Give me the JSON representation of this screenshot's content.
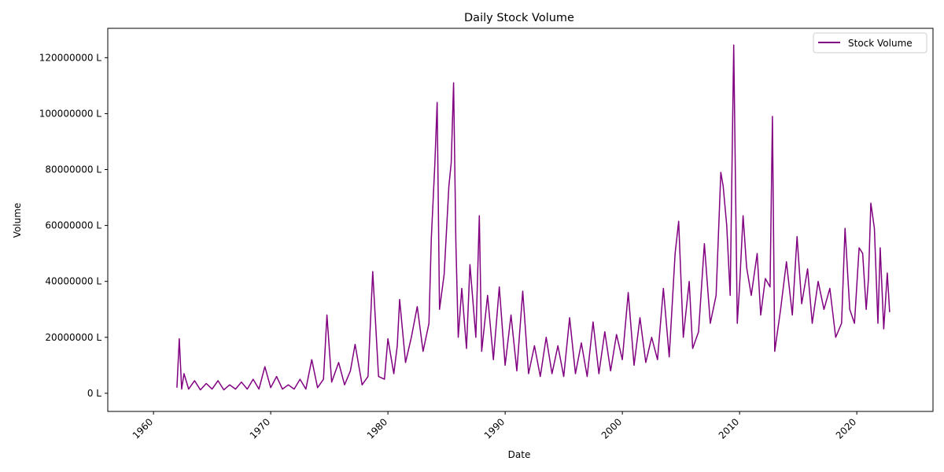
{
  "chart_data": {
    "type": "line",
    "title": "Daily Stock Volume",
    "xlabel": "Date",
    "ylabel": "Volume",
    "xlim": [
      1956.1,
      2026.5
    ],
    "ylim": [
      -6500000,
      130500000
    ],
    "x_ticks": [
      1960,
      1970,
      1980,
      1990,
      2000,
      2010,
      2020
    ],
    "x_tick_labels": [
      "1960",
      "1970",
      "1980",
      "1990",
      "2000",
      "2010",
      "2020"
    ],
    "y_ticks": [
      0,
      20000000,
      40000000,
      60000000,
      80000000,
      100000000,
      120000000
    ],
    "y_tick_labels": [
      "0 L",
      "20000000 L",
      "40000000 L",
      "60000000 L",
      "80000000 L",
      "100000000 L",
      "120000000 L"
    ],
    "grid": false,
    "legend_position": "top-right",
    "series": [
      {
        "name": "Stock Volume",
        "color": "#800080",
        "x": [
          1962.0,
          1962.2,
          1962.4,
          1962.6,
          1963.0,
          1963.5,
          1964.0,
          1964.5,
          1965.0,
          1965.5,
          1966.0,
          1966.5,
          1967.0,
          1967.5,
          1968.0,
          1968.5,
          1969.0,
          1969.5,
          1970.0,
          1970.5,
          1971.0,
          1971.5,
          1972.0,
          1972.5,
          1973.0,
          1973.5,
          1974.0,
          1974.5,
          1974.8,
          1975.2,
          1975.8,
          1976.3,
          1976.8,
          1977.2,
          1977.8,
          1978.3,
          1978.7,
          1979.2,
          1979.7,
          1980.0,
          1980.5,
          1980.8,
          1981.0,
          1981.5,
          1982.0,
          1982.5,
          1983.0,
          1983.5,
          1983.7,
          1984.0,
          1984.2,
          1984.4,
          1984.8,
          1985.2,
          1985.4,
          1985.6,
          1985.8,
          1986.0,
          1986.3,
          1986.7,
          1987.0,
          1987.5,
          1987.8,
          1988.0,
          1988.5,
          1989.0,
          1989.5,
          1990.0,
          1990.5,
          1991.0,
          1991.5,
          1992.0,
          1992.5,
          1993.0,
          1993.5,
          1994.0,
          1994.5,
          1995.0,
          1995.5,
          1996.0,
          1996.5,
          1997.0,
          1997.5,
          1998.0,
          1998.5,
          1999.0,
          1999.5,
          2000.0,
          2000.5,
          2001.0,
          2001.5,
          2002.0,
          2002.5,
          2003.0,
          2003.5,
          2004.0,
          2004.5,
          2004.8,
          2005.2,
          2005.7,
          2006.0,
          2006.5,
          2007.0,
          2007.5,
          2008.0,
          2008.4,
          2008.6,
          2008.9,
          2009.2,
          2009.5,
          2009.8,
          2010.0,
          2010.3,
          2010.6,
          2011.0,
          2011.5,
          2011.8,
          2012.2,
          2012.6,
          2012.8,
          2013.0,
          2013.5,
          2014.0,
          2014.5,
          2014.9,
          2015.3,
          2015.8,
          2016.2,
          2016.7,
          2017.2,
          2017.7,
          2018.2,
          2018.7,
          2019.0,
          2019.4,
          2019.8,
          2020.2,
          2020.5,
          2020.8,
          2021.0,
          2021.2,
          2021.5,
          2021.8,
          2022.0,
          2022.3,
          2022.6,
          2022.8
        ],
        "values": [
          2000000,
          19500000,
          1500000,
          7000000,
          1500000,
          4500000,
          1200000,
          3500000,
          1500000,
          4500000,
          1200000,
          3000000,
          1500000,
          4000000,
          1500000,
          5000000,
          1500000,
          9500000,
          2000000,
          6000000,
          1500000,
          3000000,
          1500000,
          5000000,
          1500000,
          12000000,
          2000000,
          5000000,
          28000000,
          4000000,
          11000000,
          3000000,
          8000000,
          17500000,
          3000000,
          6000000,
          43500000,
          6000000,
          5000000,
          19500000,
          7000000,
          17000000,
          33500000,
          11000000,
          20000000,
          31000000,
          15000000,
          25000000,
          55500000,
          81500000,
          104000000,
          30000000,
          42500000,
          74000000,
          82500000,
          111000000,
          54000000,
          20000000,
          37500000,
          16000000,
          46000000,
          20000000,
          63500000,
          15000000,
          35000000,
          12000000,
          38000000,
          10000000,
          28000000,
          8000000,
          36500000,
          7000000,
          17000000,
          6000000,
          20000000,
          7000000,
          17000000,
          6000000,
          27000000,
          7000000,
          18000000,
          6000000,
          25500000,
          7000000,
          22000000,
          8000000,
          21000000,
          12000000,
          36000000,
          10000000,
          27000000,
          11000000,
          20000000,
          12000000,
          37500000,
          13000000,
          50000000,
          61500000,
          20000000,
          40000000,
          16000000,
          22000000,
          53500000,
          25000000,
          35000000,
          79000000,
          74000000,
          60000000,
          35000000,
          124500000,
          25000000,
          38000000,
          63500000,
          45000000,
          35000000,
          50000000,
          28000000,
          41000000,
          38000000,
          99000000,
          15000000,
          30000000,
          47000000,
          28000000,
          56000000,
          32000000,
          44500000,
          25000000,
          40000000,
          30000000,
          37500000,
          20000000,
          25000000,
          59000000,
          30000000,
          25000000,
          52000000,
          50000000,
          30000000,
          41000000,
          68000000,
          59000000,
          25000000,
          52000000,
          23000000,
          43000000,
          29000000
        ]
      }
    ]
  }
}
